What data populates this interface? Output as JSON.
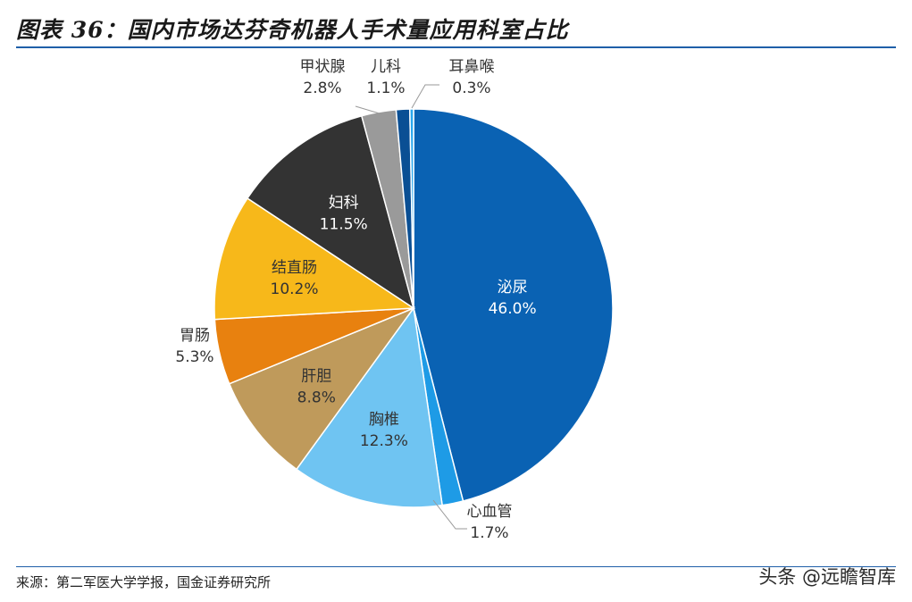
{
  "title": "图表 36：国内市场达芬奇机器人手术量应用科室占比",
  "source": "来源：第二军医大学学报，国金证券研究所",
  "watermark": "头条 @远瞻智库",
  "chart_data": {
    "type": "pie",
    "title": "图表 36：国内市场达芬奇机器人手术量应用科室占比",
    "slices": [
      {
        "name": "泌尿",
        "value": 46.0,
        "label": "46.0%",
        "color": "#0a62b3"
      },
      {
        "name": "心血管",
        "value": 1.7,
        "label": "1.7%",
        "color": "#1e9be6"
      },
      {
        "name": "胸椎",
        "value": 12.3,
        "label": "12.3%",
        "color": "#6fc4f2"
      },
      {
        "name": "肝胆",
        "value": 8.8,
        "label": "8.8%",
        "color": "#bf9a5b"
      },
      {
        "name": "胃肠",
        "value": 5.3,
        "label": "5.3%",
        "color": "#e8810f"
      },
      {
        "name": "结直肠",
        "value": 10.2,
        "label": "10.2%",
        "color": "#f7b81a"
      },
      {
        "name": "妇科",
        "value": 11.5,
        "label": "11.5%",
        "color": "#333333"
      },
      {
        "name": "甲状腺",
        "value": 2.8,
        "label": "2.8%",
        "color": "#9a9a9a"
      },
      {
        "name": "儿科",
        "value": 1.1,
        "label": "1.1%",
        "color": "#0a4f94"
      },
      {
        "name": "耳鼻喉",
        "value": 0.3,
        "label": "0.3%",
        "color": "#27a6ee"
      }
    ]
  }
}
